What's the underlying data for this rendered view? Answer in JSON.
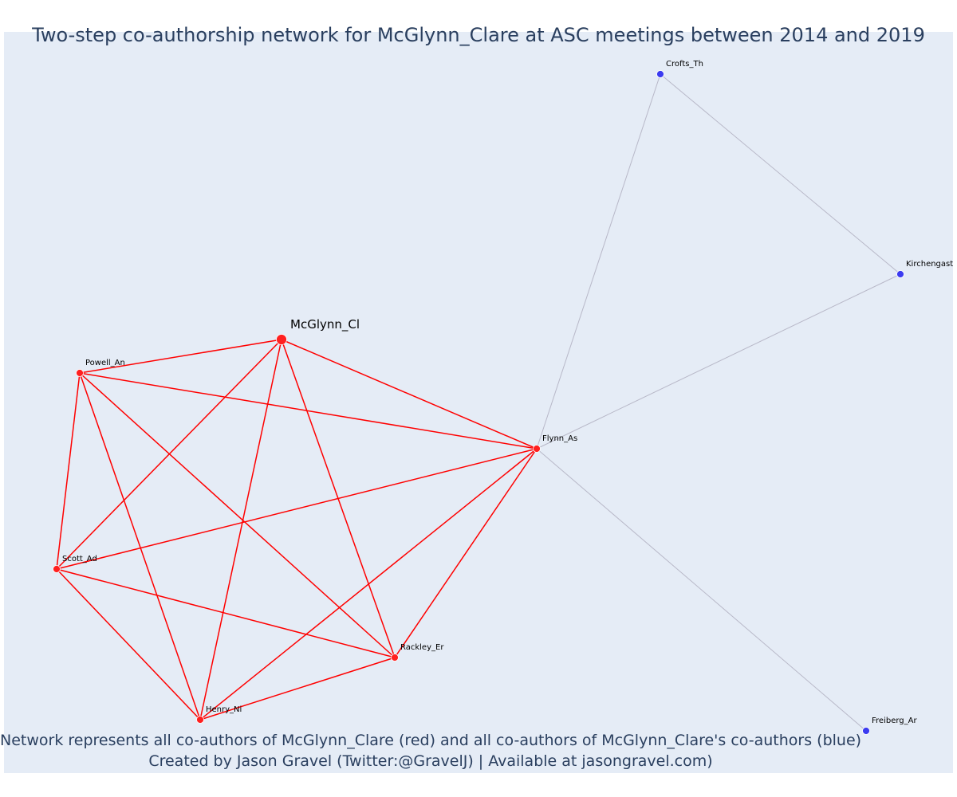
{
  "title": "Two-step co-authorship network for McGlynn_Clare at ASC meetings between 2014 and 2019",
  "caption_line1": "Network represents all co-authors of McGlynn_Clare (red) and all co-authors of McGlynn_Clare's co-authors (blue)",
  "caption_line2": "Created by Jason Gravel (Twitter:@GravelJ) | Available at jasongravel.com)",
  "colors": {
    "background": "#e5ecf6",
    "first_degree": "#ff2020",
    "second_degree": "#3b3bf0",
    "first_degree_edge": "#ff0000",
    "second_degree_edge": "#b8b8c8",
    "text": "#2a3f5f"
  },
  "nodes": [
    {
      "id": "McGlynn_Cl",
      "label": "McGlynn_Cl",
      "group": "focal"
    },
    {
      "id": "Powell_An",
      "label": "Powell_An",
      "group": "first"
    },
    {
      "id": "Flynn_As",
      "label": "Flynn_As",
      "group": "first"
    },
    {
      "id": "Scott_Ad",
      "label": "Scott_Ad",
      "group": "first"
    },
    {
      "id": "Rackley_Er",
      "label": "Rackley_Er",
      "group": "first"
    },
    {
      "id": "Henry_Ni",
      "label": "Henry_Ni",
      "group": "first"
    },
    {
      "id": "Crofts_Th",
      "label": "Crofts_Th",
      "group": "second"
    },
    {
      "id": "Kirchengast_",
      "label": "Kirchengast_",
      "group": "second"
    },
    {
      "id": "Freiberg_Ar",
      "label": "Freiberg_Ar",
      "group": "second"
    }
  ],
  "edges": [
    {
      "source": "McGlynn_Cl",
      "target": "Powell_An",
      "group": "first"
    },
    {
      "source": "McGlynn_Cl",
      "target": "Flynn_As",
      "group": "first"
    },
    {
      "source": "McGlynn_Cl",
      "target": "Scott_Ad",
      "group": "first"
    },
    {
      "source": "McGlynn_Cl",
      "target": "Henry_Ni",
      "group": "first"
    },
    {
      "source": "McGlynn_Cl",
      "target": "Rackley_Er",
      "group": "first"
    },
    {
      "source": "Powell_An",
      "target": "Flynn_As",
      "group": "first"
    },
    {
      "source": "Powell_An",
      "target": "Scott_Ad",
      "group": "first"
    },
    {
      "source": "Powell_An",
      "target": "Henry_Ni",
      "group": "first"
    },
    {
      "source": "Powell_An",
      "target": "Rackley_Er",
      "group": "first"
    },
    {
      "source": "Flynn_As",
      "target": "Scott_Ad",
      "group": "first"
    },
    {
      "source": "Flynn_As",
      "target": "Henry_Ni",
      "group": "first"
    },
    {
      "source": "Flynn_As",
      "target": "Rackley_Er",
      "group": "first"
    },
    {
      "source": "Scott_Ad",
      "target": "Henry_Ni",
      "group": "first"
    },
    {
      "source": "Scott_Ad",
      "target": "Rackley_Er",
      "group": "first"
    },
    {
      "source": "Henry_Ni",
      "target": "Rackley_Er",
      "group": "first"
    },
    {
      "source": "Flynn_As",
      "target": "Crofts_Th",
      "group": "second"
    },
    {
      "source": "Flynn_As",
      "target": "Kirchengast_",
      "group": "second"
    },
    {
      "source": "Flynn_As",
      "target": "Freiberg_Ar",
      "group": "second"
    },
    {
      "source": "Crofts_Th",
      "target": "Kirchengast_",
      "group": "second"
    }
  ]
}
